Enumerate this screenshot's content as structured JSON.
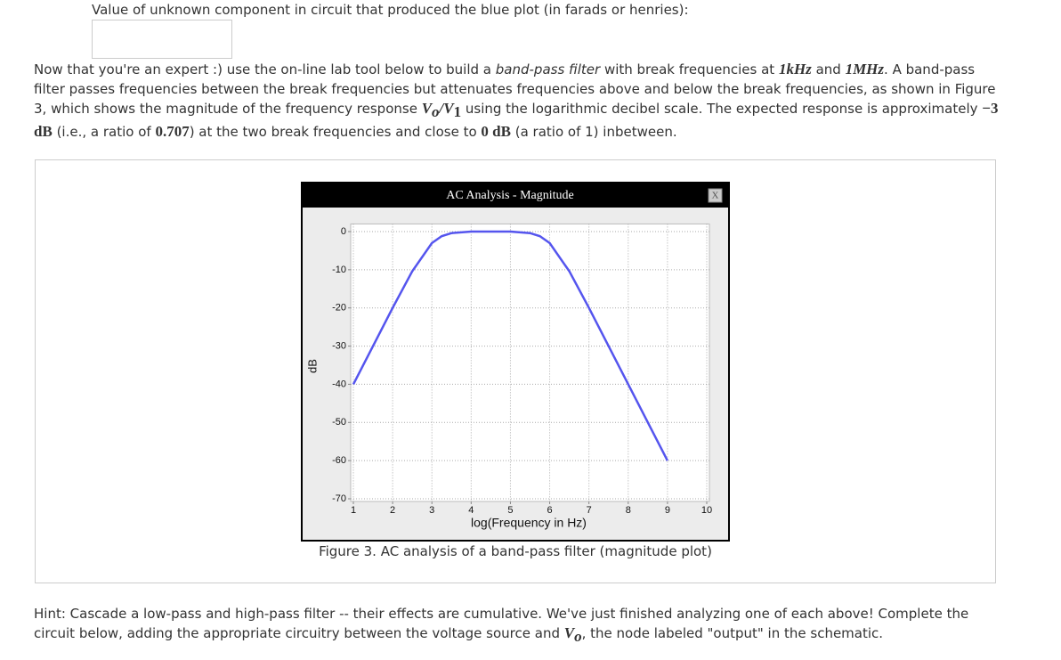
{
  "question": "Value of unknown component in circuit that produced the blue plot (in farads or henries):",
  "intro": {
    "segments": [
      "Now that you're an expert :) use the on-line lab tool below to build a ",
      "band-pass filter",
      " with break frequencies at ",
      "1kHz",
      " and ",
      "1MHz",
      ". A band-pass filter passes frequencies between the break frequencies but attenuates frequencies above and below the break frequencies, as shown in Figure 3, which shows the magnitude of the frequency response ",
      "V",
      "o",
      "/V",
      "1",
      " using the logarithmic decibel scale. The expected response is approximately ",
      "−3 dB",
      " (i.e., a ratio of ",
      "0.707",
      ") at the two break frequencies and close to ",
      "0 dB",
      " (a ratio of 1) inbetween."
    ]
  },
  "chart_data": {
    "type": "line",
    "title": "AC Analysis - Magnitude",
    "close_label": "X",
    "x_label": "log(Frequency in Hz)",
    "y_label": "dB",
    "x": [
      1,
      1.5,
      2,
      2.5,
      3,
      3.25,
      3.5,
      4,
      4.5,
      5,
      5.5,
      5.75,
      6,
      6.5,
      7,
      7.5,
      8,
      8.5,
      9
    ],
    "values": [
      -40,
      -30,
      -20,
      -10.4,
      -3,
      -1.2,
      -0.4,
      0,
      0,
      0,
      -0.4,
      -1.2,
      -3,
      -10.4,
      -20,
      -30,
      -40,
      -50,
      -60
    ],
    "color": "#5555ee",
    "xlim": [
      1,
      10
    ],
    "ylim": [
      -70,
      2
    ],
    "xticks": [
      1,
      2,
      3,
      4,
      5,
      6,
      7,
      8,
      9,
      10
    ],
    "yticks": [
      0,
      -10,
      -20,
      -30,
      -40,
      -50,
      -60,
      -70
    ],
    "grid": true,
    "caption": "Figure 3. AC analysis of a band-pass filter (magnitude plot)"
  },
  "hint": {
    "segments": [
      "Hint: Cascade a low-pass and high-pass filter -- their effects are cumulative. We've just finished analyzing one of each above! Complete the circuit below, adding the appropriate circuitry between the voltage source and ",
      "V",
      "o",
      ", the node labeled \"output\" in the schematic."
    ]
  }
}
